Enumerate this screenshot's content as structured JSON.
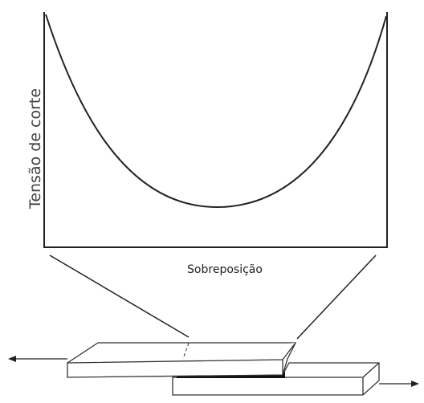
{
  "axis_labels": {
    "y": "Tensão de corte",
    "x": "Sobreposição"
  }
}
